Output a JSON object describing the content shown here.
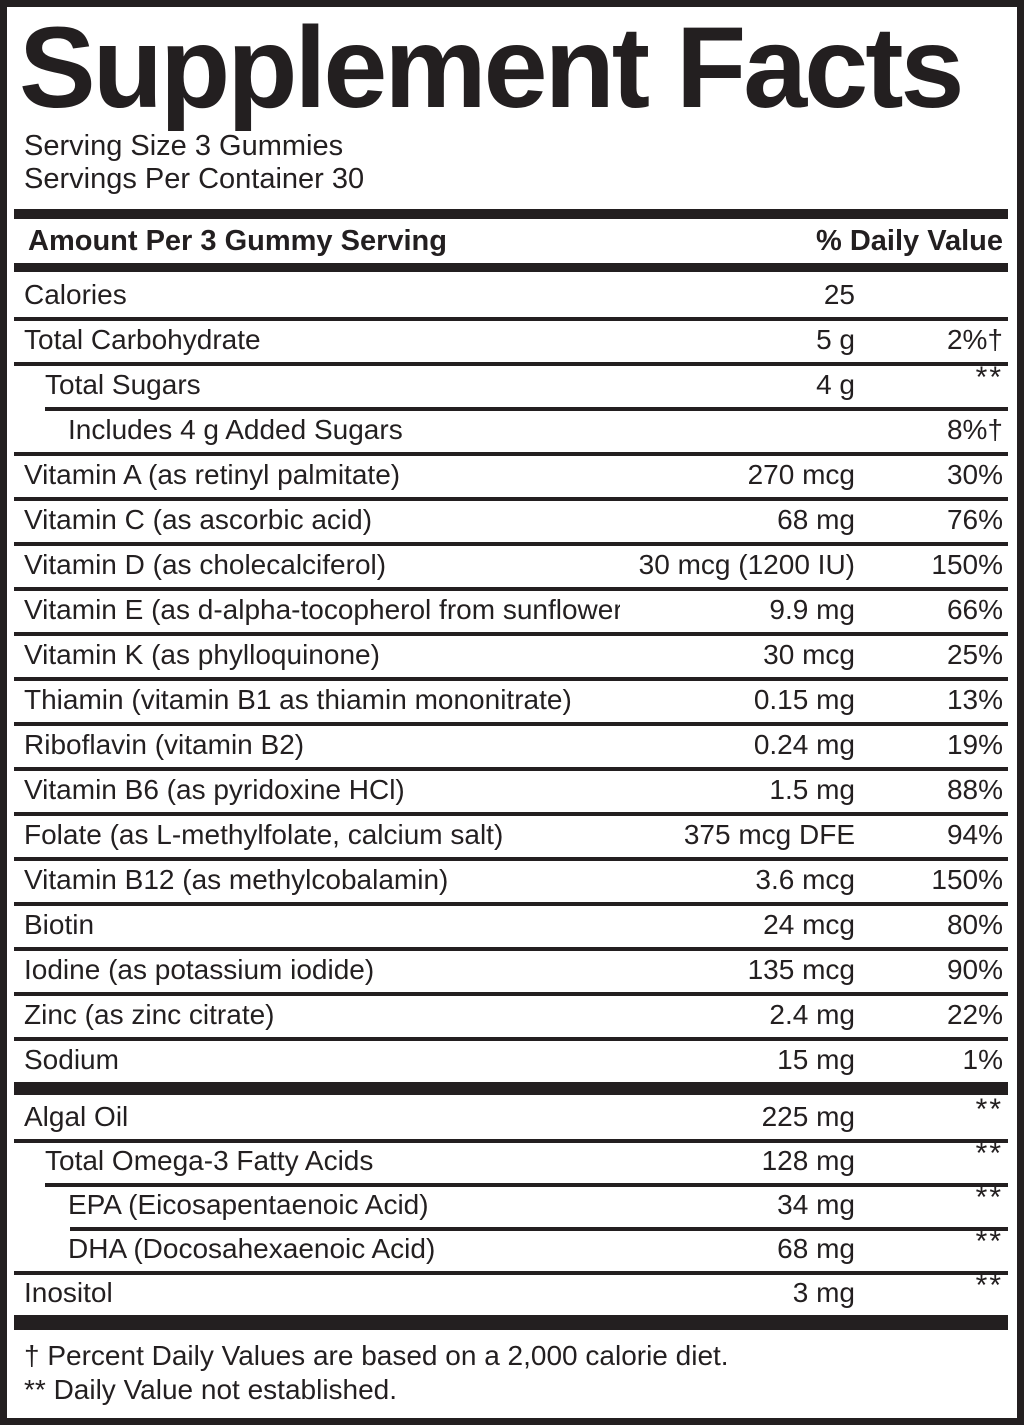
{
  "title": "Supplement Facts",
  "serving_info": {
    "serving_size": "Serving Size 3 Gummies",
    "servings_per_container": "Servings Per Container 30"
  },
  "table_header": {
    "amount_label": "Amount Per 3 Gummy Serving",
    "daily_value_label": "% Daily Value"
  },
  "colors": {
    "ink": "#231f20",
    "background": "#ffffff"
  },
  "sections": [
    {
      "name": "vitamins-minerals",
      "rows": [
        {
          "label": "Calories",
          "amount": "25",
          "dv": "",
          "indent": 0,
          "sep": "none"
        },
        {
          "label": "Total Carbohydrate",
          "amount": "5 g",
          "dv": "2%†",
          "indent": 0,
          "sep": "full"
        },
        {
          "label": "Total Sugars",
          "amount": "4 g",
          "dv": "**",
          "indent": 1,
          "sep": "full"
        },
        {
          "label": "Includes 4 g Added Sugars",
          "amount": "",
          "dv": "8%†",
          "indent": 2,
          "sep": "l1"
        },
        {
          "label": "Vitamin A (as retinyl palmitate)",
          "amount": "270 mcg",
          "dv": "30%",
          "indent": 0,
          "sep": "full"
        },
        {
          "label": "Vitamin C (as ascorbic acid)",
          "amount": "68 mg",
          "dv": "76%",
          "indent": 0,
          "sep": "full"
        },
        {
          "label": "Vitamin D (as cholecalciferol)",
          "amount": "30 mcg (1200 IU)",
          "dv": "150%",
          "indent": 0,
          "sep": "full"
        },
        {
          "label": "Vitamin E (as d-alpha-tocopherol from sunflower oil)",
          "amount": "9.9 mg",
          "dv": "66%",
          "indent": 0,
          "sep": "full"
        },
        {
          "label": "Vitamin K (as phylloquinone)",
          "amount": "30 mcg",
          "dv": "25%",
          "indent": 0,
          "sep": "full"
        },
        {
          "label": "Thiamin (vitamin B1 as thiamin mononitrate)",
          "amount": "0.15 mg",
          "dv": "13%",
          "indent": 0,
          "sep": "full"
        },
        {
          "label": "Riboflavin (vitamin B2)",
          "amount": "0.24 mg",
          "dv": "19%",
          "indent": 0,
          "sep": "full"
        },
        {
          "label": "Vitamin B6 (as pyridoxine HCl)",
          "amount": "1.5 mg",
          "dv": "88%",
          "indent": 0,
          "sep": "full"
        },
        {
          "label": "Folate (as L-methylfolate, calcium salt)",
          "amount": "375 mcg DFE",
          "dv": "94%",
          "indent": 0,
          "sep": "full"
        },
        {
          "label": "Vitamin B12 (as methylcobalamin)",
          "amount": "3.6 mcg",
          "dv": "150%",
          "indent": 0,
          "sep": "full"
        },
        {
          "label": "Biotin",
          "amount": "24 mcg",
          "dv": "80%",
          "indent": 0,
          "sep": "full"
        },
        {
          "label": "Iodine (as potassium iodide)",
          "amount": "135 mcg",
          "dv": "90%",
          "indent": 0,
          "sep": "full"
        },
        {
          "label": "Zinc (as zinc citrate)",
          "amount": "2.4 mg",
          "dv": "22%",
          "indent": 0,
          "sep": "full"
        },
        {
          "label": "Sodium",
          "amount": "15 mg",
          "dv": "1%",
          "indent": 0,
          "sep": "full"
        }
      ]
    },
    {
      "name": "oils-other",
      "rows": [
        {
          "label": "Algal Oil",
          "amount": "225 mg",
          "dv": "**",
          "indent": 0,
          "sep": "none"
        },
        {
          "label": "Total Omega-3 Fatty Acids",
          "amount": "128 mg",
          "dv": "**",
          "indent": 1,
          "sep": "full"
        },
        {
          "label": "EPA (Eicosapentaenoic Acid)",
          "amount": "34 mg",
          "dv": "**",
          "indent": 2,
          "sep": "l1"
        },
        {
          "label": "DHA (Docosahexaenoic Acid)",
          "amount": "68 mg",
          "dv": "**",
          "indent": 2,
          "sep": "l2"
        },
        {
          "label": "Inositol",
          "amount": "3 mg",
          "dv": "**",
          "indent": 0,
          "sep": "full"
        }
      ]
    }
  ],
  "footnotes": [
    "† Percent Daily Values are based on a 2,000 calorie diet.",
    "** Daily Value not established."
  ]
}
